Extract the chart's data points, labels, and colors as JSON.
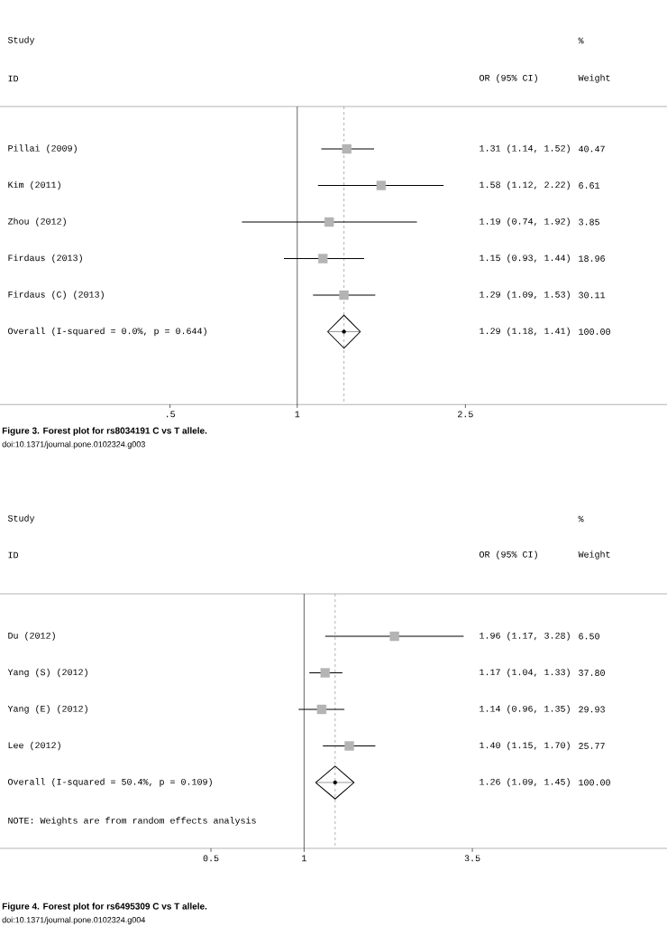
{
  "chart_data": [
    {
      "type": "scatter",
      "orientation": "horizontal",
      "title": "Figure 3. Forest plot for rs8034191 C vs T allele.",
      "subtitle": "doi:10.1371/journal.pone.0102324.g003",
      "categories": [
        "Pillai (2009)",
        "Kim (2011)",
        "Zhou (2012)",
        "Firdaus (2013)",
        "Firdaus (C) (2013)",
        "Overall (I-squared = 0.0%, p = 0.644)"
      ],
      "series": [
        {
          "color": "#b4b4b4",
          "marker": "square",
          "values": [
            1.31,
            1.58,
            1.19,
            1.15,
            1.29,
            null
          ],
          "errors": [
            [
              1.14,
              1.52
            ],
            [
              1.12,
              2.22
            ],
            [
              0.74,
              1.92
            ],
            [
              0.93,
              1.44
            ],
            [
              1.09,
              1.53
            ],
            null
          ]
        },
        {
          "color": "#000000",
          "marker": "diamond",
          "values": [
            null,
            null,
            null,
            null,
            null,
            1.29
          ],
          "errors": [
            null,
            null,
            null,
            null,
            null,
            [
              1.18,
              1.41
            ]
          ]
        }
      ],
      "annotations": [
        "Study",
        "ID",
        "OR (95% CI)",
        "%",
        "Weight",
        "1.31 (1.14, 1.52)",
        "40.47",
        "1.58 (1.12, 2.22)",
        "6.61",
        "1.19 (0.74, 1.92)",
        "3.85",
        "1.15 (0.93, 1.44)",
        "18.96",
        "1.29 (1.09, 1.53)",
        "30.11",
        "1.29 (1.18, 1.41)",
        "100.00"
      ],
      "ref_lines": [
        {
          "axis": "x",
          "value": 1,
          "color": "#000000",
          "line_style": "solid"
        },
        {
          "axis": "x",
          "value": 1.29,
          "color": "#808080",
          "line_style": "dashed"
        }
      ],
      "log": "x",
      "xlim": [
        0.198,
        7.5
      ],
      "xticks": [
        {
          "value": 0.5,
          "label": ".5"
        },
        1,
        2.5
      ],
      "tick_labels": "x"
    },
    {
      "type": "scatter",
      "orientation": "horizontal",
      "title": "Figure 4. Forest plot for rs6495309 C vs T allele.",
      "subtitle": "doi:10.1371/journal.pone.0102324.g004",
      "categories": [
        "Du (2012)",
        "Yang (S) (2012)",
        "Yang (E) (2012)",
        "Lee (2012)",
        "Overall (I-squared = 50.4%, p = 0.109)"
      ],
      "series": [
        {
          "color": "#b4b4b4",
          "marker": "square",
          "values": [
            1.96,
            1.17,
            1.14,
            1.4,
            null
          ],
          "errors": [
            [
              1.17,
              3.28
            ],
            [
              1.04,
              1.33
            ],
            [
              0.96,
              1.35
            ],
            [
              1.15,
              1.7
            ],
            null
          ]
        },
        {
          "color": "#000000",
          "marker": "diamond",
          "values": [
            null,
            null,
            null,
            null,
            1.26
          ],
          "errors": [
            null,
            null,
            null,
            null,
            [
              1.09,
              1.45
            ]
          ]
        }
      ],
      "annotations": [
        "Study",
        "ID",
        "OR (95% CI)",
        "%",
        "Weight",
        "1.96 (1.17, 3.28)",
        "6.50",
        "1.17 (1.04, 1.33)",
        "37.80",
        "1.14 (0.96, 1.35)",
        "29.93",
        "1.40 (1.15, 1.70)",
        "25.77",
        "1.26 (1.09, 1.45)",
        "100.00",
        "NOTE: Weights are from random effects analysis"
      ],
      "ref_lines": [
        {
          "axis": "x",
          "value": 1,
          "color": "#000000",
          "line_style": "solid"
        },
        {
          "axis": "x",
          "value": 1.26,
          "color": "#808080",
          "line_style": "dashed"
        }
      ],
      "log": "x",
      "xlim": [
        0.104,
        14.9
      ],
      "xticks": [
        {
          "value": 0.5,
          "label": "0.5"
        },
        1,
        3.5
      ],
      "tick_labels": "x"
    }
  ]
}
